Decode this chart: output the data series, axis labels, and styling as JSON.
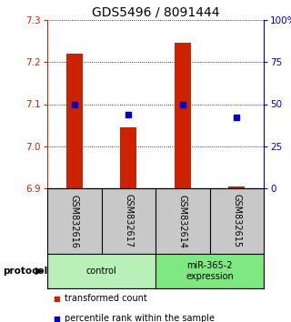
{
  "title": "GDS5496 / 8091444",
  "samples": [
    "GSM832616",
    "GSM832617",
    "GSM832614",
    "GSM832615"
  ],
  "red_values": [
    7.22,
    7.045,
    7.245,
    6.905
  ],
  "blue_pct": [
    50,
    44,
    50,
    42
  ],
  "y_min": 6.9,
  "y_max": 7.3,
  "y_ticks_left": [
    6.9,
    7.0,
    7.1,
    7.2,
    7.3
  ],
  "y_ticks_right": [
    0,
    25,
    50,
    75,
    100
  ],
  "y_ticks_right_labels": [
    "0",
    "25",
    "50",
    "75",
    "100%"
  ],
  "groups": [
    {
      "label": "control",
      "indices": [
        0,
        1
      ],
      "color": "#b8f0b8"
    },
    {
      "label": "miR-365-2\nexpression",
      "indices": [
        2,
        3
      ],
      "color": "#80e880"
    }
  ],
  "legend_red": "transformed count",
  "legend_blue": "percentile rank within the sample",
  "red_color": "#cc2200",
  "blue_color": "#0000cc",
  "bar_width": 0.3,
  "protocol_label": "protocol",
  "title_fontsize": 10,
  "tick_fontsize": 7.5,
  "sample_fontsize": 7,
  "proto_fontsize": 7,
  "legend_fontsize": 7
}
